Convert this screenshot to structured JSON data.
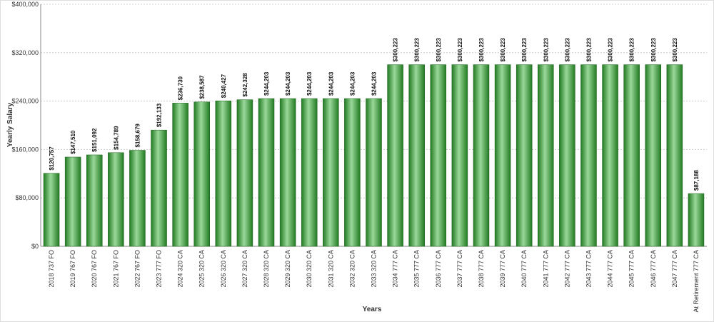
{
  "chart_data": {
    "type": "bar",
    "x_label": "Years",
    "y_label": "Yearly Salary",
    "categories": [
      "2018 737 FO",
      "2019 767 FO",
      "2020 767 FO",
      "2021 767 FO",
      "2022 767 FO",
      "2023 777 FO",
      "2024 320 CA",
      "2025 320 CA",
      "2026 320 CA",
      "2027 320 CA",
      "2028 320 CA",
      "2029 320 CA",
      "2030 320 CA",
      "2031 320 CA",
      "2032 320 CA",
      "2033 320 CA",
      "2034 777 CA",
      "2035 777 CA",
      "2036 777 CA",
      "2037 777 CA",
      "2038 777 CA",
      "2039 777 CA",
      "2040 777 CA",
      "2041 777 CA",
      "2042 777 CA",
      "2043 777 CA",
      "2044 777 CA",
      "2045 777 CA",
      "2046 777 CA",
      "2047 777 CA",
      "At Retirement 777 CA"
    ],
    "values": [
      120757,
      147510,
      151092,
      154789,
      158679,
      192133,
      236730,
      238587,
      240427,
      242328,
      244203,
      244203,
      244203,
      244203,
      244203,
      244203,
      300223,
      300223,
      300223,
      300223,
      300223,
      300223,
      300223,
      300223,
      300223,
      300223,
      300223,
      300223,
      300223,
      300223,
      87188
    ],
    "value_labels": [
      "$120,757",
      "$147,510",
      "$151,092",
      "$154,789",
      "$158,679",
      "$192,133",
      "$236,730",
      "$238,587",
      "$240,427",
      "$242,328",
      "$244,203",
      "$244,203",
      "$244,203",
      "$244,203",
      "$244,203",
      "$244,203",
      "$300,223",
      "$300,223",
      "$300,223",
      "$300,223",
      "$300,223",
      "$300,223",
      "$300,223",
      "$300,223",
      "$300,223",
      "$300,223",
      "$300,223",
      "$300,223",
      "$300,223",
      "$300,223",
      "$87,188"
    ],
    "color": "#217a21",
    "ylim": [
      0,
      400000
    ],
    "yticks": [
      {
        "value": 0,
        "label": "$0"
      },
      {
        "value": 80000,
        "label": "$80,000"
      },
      {
        "value": 160000,
        "label": "$160,000"
      },
      {
        "value": 240000,
        "label": "$240,000"
      },
      {
        "value": 320000,
        "label": "$320,000"
      },
      {
        "value": 400000,
        "label": "$400,000"
      }
    ],
    "grid": true
  }
}
